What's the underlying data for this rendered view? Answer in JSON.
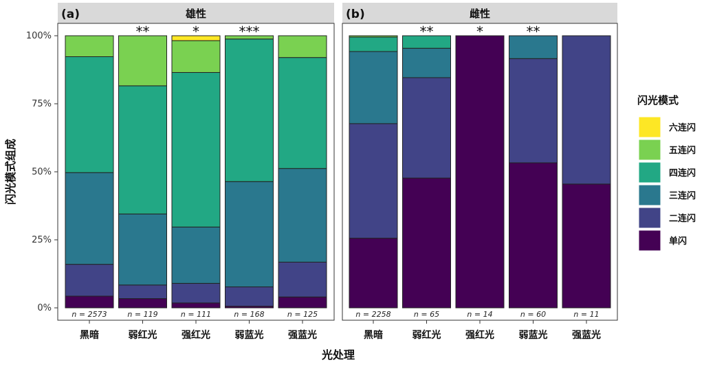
{
  "chart_data": {
    "type": "bar",
    "stacked": true,
    "xlabel": "光处理",
    "ylabel": "闪光模式组成",
    "ylim": [
      0,
      100
    ],
    "yticks": [
      "0%",
      "25%",
      "50%",
      "75%",
      "100%"
    ],
    "legend": {
      "title": "闪光模式",
      "placement": "right",
      "items": [
        {
          "label": "六连闪",
          "color": "#FDE725"
        },
        {
          "label": "五连闪",
          "color": "#7AD151"
        },
        {
          "label": "四连闪",
          "color": "#22A884"
        },
        {
          "label": "三连闪",
          "color": "#2A788E"
        },
        {
          "label": "二连闪",
          "color": "#414487"
        },
        {
          "label": "单闪",
          "color": "#440154"
        }
      ]
    },
    "stack_order": [
      "单闪",
      "二连闪",
      "三连闪",
      "四连闪",
      "五连闪",
      "六连闪"
    ],
    "panels": [
      {
        "label": "(a)",
        "strip": "雄性",
        "categories": [
          "黑暗",
          "弱红光",
          "强红光",
          "弱蓝光",
          "强蓝光"
        ],
        "n_labels": [
          "n = 2573",
          "n = 119",
          "n = 111",
          "n = 168",
          "n = 125"
        ],
        "significance": [
          "",
          "**",
          "*",
          "***",
          ""
        ],
        "values": [
          [
            4.3,
            11.7,
            33.7,
            42.6,
            7.7,
            0.0
          ],
          [
            3.4,
            5.0,
            26.1,
            47.1,
            18.4,
            0.0
          ],
          [
            1.8,
            7.2,
            20.7,
            56.8,
            11.7,
            1.8
          ],
          [
            0.6,
            7.1,
            38.7,
            52.4,
            1.2,
            0.0
          ],
          [
            4.0,
            12.8,
            34.4,
            40.8,
            8.0,
            0.0
          ]
        ]
      },
      {
        "label": "(b)",
        "strip": "雌性",
        "categories": [
          "黑暗",
          "弱红光",
          "强红光",
          "弱蓝光",
          "强蓝光"
        ],
        "n_labels": [
          "n = 2258",
          "n = 65",
          "n = 14",
          "n = 60",
          "n = 11"
        ],
        "significance": [
          "",
          "**",
          "*",
          "**",
          ""
        ],
        "values": [
          [
            25.6,
            42.1,
            26.5,
            5.3,
            0.5,
            0.0
          ],
          [
            47.7,
            36.9,
            10.8,
            4.6,
            0.0,
            0.0
          ],
          [
            100.0,
            0.0,
            0.0,
            0.0,
            0.0,
            0.0
          ],
          [
            53.3,
            38.3,
            8.4,
            0.0,
            0.0,
            0.0
          ],
          [
            45.5,
            54.5,
            0.0,
            0.0,
            0.0,
            0.0
          ]
        ]
      }
    ]
  }
}
